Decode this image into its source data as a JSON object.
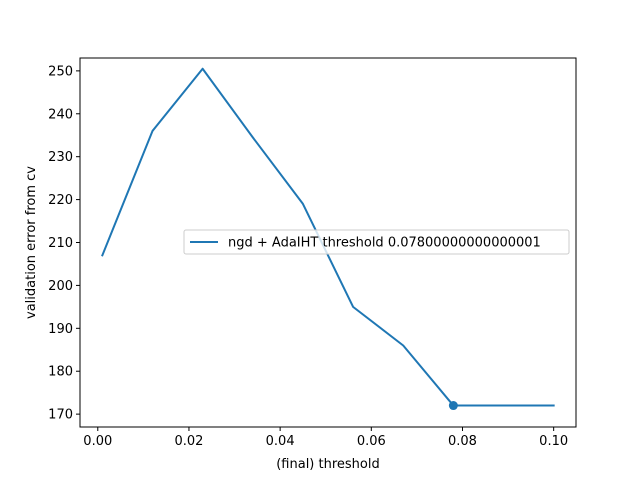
{
  "chart_data": {
    "type": "line",
    "title": "",
    "xlabel": "(final) threshold",
    "ylabel": "validation error from cv",
    "xlim": [
      -0.0039,
      0.1049
    ],
    "ylim": [
      167,
      253
    ],
    "xticks": [
      0.0,
      0.02,
      0.04,
      0.06,
      0.08,
      0.1
    ],
    "xtick_labels": [
      "0.00",
      "0.02",
      "0.04",
      "0.06",
      "0.08",
      "0.10"
    ],
    "yticks": [
      170,
      180,
      190,
      200,
      210,
      220,
      230,
      240,
      250
    ],
    "ytick_labels": [
      "170",
      "180",
      "190",
      "200",
      "210",
      "220",
      "230",
      "240",
      "250"
    ],
    "grid": false,
    "legend_position": "center-right",
    "series": [
      {
        "name": "ngd + AdaIHT threshold 0.07800000000000001",
        "color": "#1f77b4",
        "x": [
          0.001,
          0.012,
          0.023,
          0.034,
          0.045,
          0.056,
          0.067,
          0.078,
          0.089,
          0.1
        ],
        "values": [
          207,
          236,
          250.5,
          234.5,
          219,
          195,
          186,
          172,
          172,
          172
        ]
      }
    ],
    "highlight_point": {
      "x": 0.078,
      "y": 172,
      "color": "#1f77b4"
    }
  }
}
